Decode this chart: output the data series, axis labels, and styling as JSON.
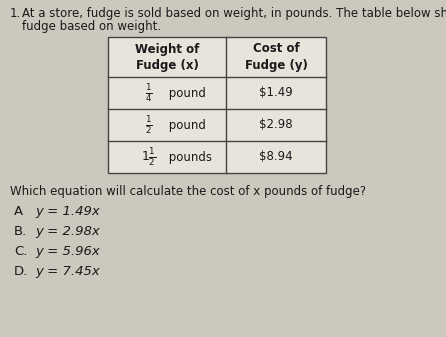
{
  "background_color": "#cdc8be",
  "question_number": "1.",
  "question_line1": "At a store, fudge is sold based on weight, in pounds. The table below shows the cost of",
  "question_line2": "fudge based on weight.",
  "table_col1_header": "Weight of\nFudge (x)",
  "table_col2_header": "Cost of\nFudge (y)",
  "row_weights": [
    "$\\frac{1}{4}$ pound",
    "$\\frac{1}{2}$ pound",
    "$1\\frac{1}{2}$ pounds"
  ],
  "row_costs": [
    "$1.49",
    "$2.98",
    "$8.94"
  ],
  "sub_question": "Which equation will calculate the cost of x pounds of fudge?",
  "choice_labels": [
    "A",
    "B.",
    "C.",
    "D."
  ],
  "choice_equations": [
    "y = 1.49x",
    "y = 2.98x",
    "y = 5.96x",
    "y = 7.45x"
  ],
  "text_color": "#1a1a1a",
  "table_border_color": "#444444",
  "table_bg": "#e8e4dc",
  "fs_body": 8.5,
  "fs_table": 8.5,
  "fs_choices": 9.5
}
